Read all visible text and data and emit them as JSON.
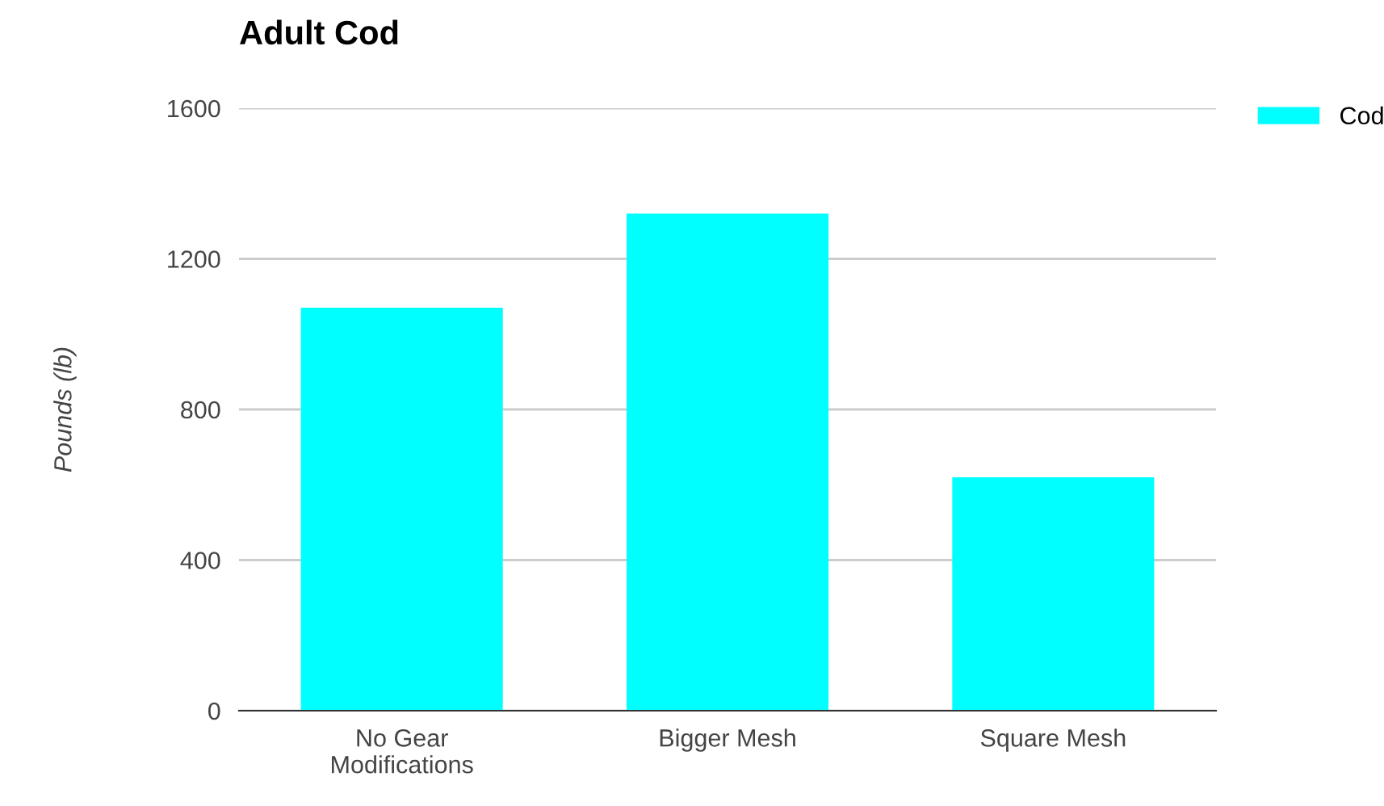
{
  "chart_data": {
    "type": "bar",
    "title": "Adult Cod",
    "ylabel": "Pounds (lb)",
    "categories": [
      "No Gear\nModifications",
      "Bigger Mesh",
      "Square Mesh"
    ],
    "series": [
      {
        "name": "Cod",
        "color": "#00ffff",
        "values": [
          1070,
          1320,
          620
        ]
      }
    ],
    "ylim": [
      0,
      1600
    ],
    "yticks": [
      0,
      400,
      800,
      1200,
      1600
    ],
    "grid": "y",
    "legend": "top right"
  }
}
